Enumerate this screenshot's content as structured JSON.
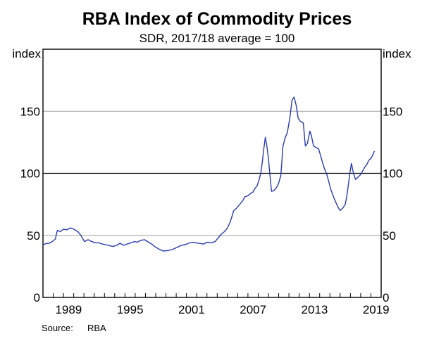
{
  "chart_data": {
    "type": "line",
    "title": "RBA Index of Commodity Prices",
    "subtitle": "SDR, 2017/18 average = 100",
    "ylabel_left": "index",
    "ylabel_right": "index",
    "xlabel": "",
    "ylim": [
      0,
      200
    ],
    "xlim": [
      1987.0,
      2020.0
    ],
    "yticks": [
      0,
      50,
      100,
      150
    ],
    "ytick_labels": [
      "0",
      "50",
      "100",
      "150"
    ],
    "xtick_labels": [
      "1989",
      "1995",
      "2001",
      "2007",
      "2013",
      "2019"
    ],
    "xtick_label_years": [
      1989,
      1995,
      2001,
      2007,
      2013,
      2019
    ],
    "minor_tick_every_years": 1,
    "grid": "horizontal",
    "highlight_line": 100,
    "legend": "none",
    "series": [
      {
        "name": "RBA Index of Commodity Prices",
        "color": "#2a3cb0",
        "x": [
          1987.07,
          1987.3,
          1987.6,
          1987.9,
          1988.2,
          1988.4,
          1988.7,
          1989.0,
          1989.3,
          1989.7,
          1990.0,
          1990.4,
          1990.7,
          1991.05,
          1991.4,
          1991.75,
          1992.1,
          1992.4,
          1992.8,
          1993.1,
          1993.4,
          1993.8,
          1994.2,
          1994.5,
          1994.9,
          1995.2,
          1995.6,
          1995.9,
          1996.2,
          1996.55,
          1996.9,
          1997.2,
          1997.6,
          1997.9,
          1998.3,
          1998.75,
          1999.2,
          1999.6,
          2000.0,
          2000.5,
          2000.9,
          2001.2,
          2001.6,
          2001.9,
          2002.3,
          2002.7,
          2003.0,
          2003.4,
          2003.8,
          2004.1,
          2004.4,
          2004.7,
          2005.0,
          2005.2,
          2005.4,
          2005.6,
          2005.9,
          2006.2,
          2006.5,
          2006.7,
          2007.0,
          2007.3,
          2007.5,
          2007.7,
          2007.9,
          2008.1,
          2008.25,
          2008.4,
          2008.55,
          2008.7,
          2008.85,
          2009.0,
          2009.15,
          2009.3,
          2009.5,
          2009.75,
          2010.0,
          2010.2,
          2010.3,
          2010.4,
          2010.6,
          2010.85,
          2011.1,
          2011.3,
          2011.5,
          2011.7,
          2011.9,
          2012.1,
          2012.4,
          2012.6,
          2012.8,
          2013.05,
          2013.2,
          2013.4,
          2013.6,
          2013.9,
          2014.1,
          2014.3,
          2014.5,
          2014.7,
          2014.9,
          2015.1,
          2015.4,
          2015.66,
          2015.85,
          2016.0,
          2016.25,
          2016.5,
          2016.65,
          2016.8,
          2016.95,
          2017.1,
          2017.3,
          2017.5,
          2017.75,
          2018.0,
          2018.2,
          2018.4,
          2018.6,
          2018.8,
          2019.0,
          2019.2,
          2019.35
        ],
        "values": [
          42.5,
          43.5,
          43.6,
          45,
          47,
          54,
          53,
          55,
          54.5,
          56,
          55,
          53,
          50,
          45,
          46.5,
          45,
          44,
          44,
          43,
          42.5,
          42,
          41,
          42,
          43.6,
          42,
          43,
          44,
          45,
          44.5,
          46,
          46.5,
          45,
          43,
          41,
          39,
          37.4,
          37.8,
          38.5,
          40,
          42,
          42.5,
          43.6,
          44.5,
          44,
          43.5,
          43,
          44.5,
          44,
          45,
          48,
          51,
          53,
          56,
          59.5,
          64,
          69.7,
          72,
          75,
          78,
          81,
          82,
          84,
          85,
          88,
          90,
          95,
          100,
          109,
          120,
          129,
          122,
          112,
          98,
          85.5,
          86,
          88,
          92,
          98,
          108,
          121,
          128,
          133,
          145,
          159,
          161.5,
          155,
          144.5,
          142,
          140.5,
          122,
          124,
          134,
          130,
          122,
          121,
          119.5,
          114,
          108,
          103,
          99,
          93,
          86.7,
          80,
          75,
          72,
          70,
          72,
          75,
          82,
          91,
          100,
          108,
          100,
          95,
          97,
          99,
          102,
          105,
          107,
          110.5,
          112,
          115,
          118
        ]
      }
    ],
    "source_label": "Source:",
    "source_value": "RBA"
  }
}
